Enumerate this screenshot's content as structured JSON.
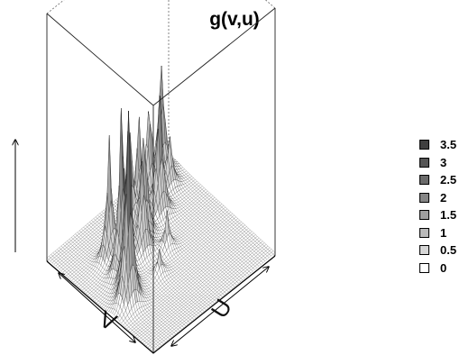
{
  "chart_data": {
    "type": "surface3d",
    "title": "g(v,u)",
    "xlabel": "V",
    "ylabel": "U",
    "zlim": [
      0,
      3.8
    ],
    "legend_position": "right",
    "colorkey": [
      {
        "label": "3.5",
        "color": "#3f3f3f"
      },
      {
        "label": "3",
        "color": "#555555"
      },
      {
        "label": "2.5",
        "color": "#6b6b6b"
      },
      {
        "label": "2",
        "color": "#858585"
      },
      {
        "label": "1.5",
        "color": "#9f9f9f"
      },
      {
        "label": "1",
        "color": "#b9b9b9"
      },
      {
        "label": "0.5",
        "color": "#d6d6d6"
      },
      {
        "label": "0",
        "color": "#ffffff"
      }
    ],
    "peaks": [
      {
        "v": 0.37,
        "u": 0.12,
        "height": 3.6
      },
      {
        "v": 0.45,
        "u": 0.18,
        "height": 2.7
      },
      {
        "v": 0.55,
        "u": 0.22,
        "height": 2.9
      },
      {
        "v": 0.62,
        "u": 0.3,
        "height": 1.6
      },
      {
        "v": 0.7,
        "u": 0.25,
        "height": 1.9
      },
      {
        "v": 0.58,
        "u": 0.42,
        "height": 1.7
      },
      {
        "v": 0.66,
        "u": 0.5,
        "height": 2.0
      },
      {
        "v": 0.74,
        "u": 0.45,
        "height": 2.1
      },
      {
        "v": 0.8,
        "u": 0.58,
        "height": 1.7
      },
      {
        "v": 0.72,
        "u": 0.68,
        "height": 2.2
      },
      {
        "v": 0.86,
        "u": 0.72,
        "height": 1.8
      },
      {
        "v": 0.93,
        "u": 0.88,
        "height": 2.0
      },
      {
        "v": 0.82,
        "u": 0.85,
        "height": 0.9
      },
      {
        "v": 0.5,
        "u": 0.55,
        "height": 0.6
      },
      {
        "v": 0.4,
        "u": 0.4,
        "height": 0.4
      }
    ]
  }
}
